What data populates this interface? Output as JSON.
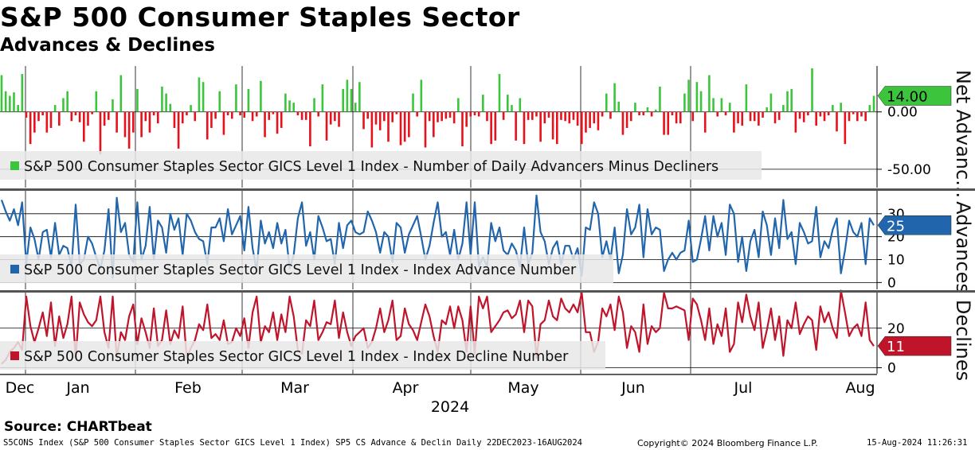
{
  "title": "S&P 500 Consumer Staples Sector",
  "subtitle": "Advances & Declines",
  "source": "Source: CHARTbeat",
  "footer": {
    "left": "S5CONS Index (S&P 500 Consumer Staples Sector GICS Level 1 Index) SP5 CS Advance & Declin  Daily 22DEC2023-16AUG2024",
    "copyright": "Copyright© 2024 Bloomberg Finance L.P.",
    "timestamp": "15-Aug-2024 11:26:31"
  },
  "colors": {
    "positive": "#3dc43d",
    "negative": "#e8101a",
    "advance": "#2166ac",
    "decline": "#c0142b",
    "grid": "#000000",
    "legend_bg": "#e8e8e8"
  },
  "chart_data": [
    {
      "panel": "top",
      "type": "bar",
      "side_label": "Net Advanc...",
      "legend": "S&P 500 Consumer Staples Sector GICS Level 1 Index - Number of Daily Advancers Minus Decliners",
      "last_value": 14,
      "last_value_label": "14.00",
      "tick_labels": [
        "0.00",
        "-50.00"
      ],
      "tick_values": [
        0,
        -50
      ],
      "ylim": [
        -66,
        40
      ],
      "values": [
        32,
        18,
        14,
        17,
        6,
        33,
        -5,
        -28,
        -18,
        -8,
        -3,
        -18,
        -14,
        6,
        -12,
        12,
        18,
        -8,
        -3,
        -9,
        -26,
        -12,
        -2,
        18,
        -37,
        -12,
        -7,
        11,
        -18,
        32,
        -22,
        -32,
        -18,
        20,
        -22,
        -8,
        -18,
        -3,
        -10,
        22,
        16,
        7,
        -14,
        -32,
        -10,
        -3,
        6,
        -8,
        30,
        26,
        -24,
        -14,
        -6,
        18,
        -20,
        -3,
        -6,
        24,
        -3,
        -5,
        20,
        -8,
        -4,
        27,
        -22,
        -7,
        -2,
        -19,
        -14,
        16,
        10,
        8,
        -3,
        -7,
        -7,
        -30,
        12,
        -4,
        24,
        -25,
        -11,
        -8,
        -13,
        20,
        28,
        20,
        8,
        26,
        -15,
        -6,
        -31,
        -11,
        -16,
        -8,
        -26,
        -9,
        -2,
        -29,
        -26,
        -22,
        16,
        -4,
        28,
        -31,
        -8,
        -22,
        -9,
        -8,
        -6,
        -5,
        -10,
        12,
        -30,
        -13,
        -4,
        -3,
        -4,
        15,
        -8,
        -28,
        -25,
        33,
        -7,
        15,
        6,
        -25,
        12,
        -28,
        -7,
        -7,
        -4,
        -26,
        -10,
        -5,
        -24,
        -28,
        -7,
        -8,
        -10,
        -7,
        -12,
        -28,
        -18,
        -14,
        -10,
        -16,
        -4,
        16,
        -6,
        25,
        9,
        -20,
        -14,
        -8,
        8,
        -3,
        -3,
        4,
        -4,
        2,
        22,
        -20,
        -20,
        -3,
        -10,
        -10,
        16,
        28,
        -8,
        26,
        18,
        -18,
        32,
        12,
        -4,
        12,
        -3,
        8,
        -18,
        -10,
        -12,
        24,
        -8,
        -8,
        -12,
        -5,
        4,
        16,
        -10,
        -7,
        6,
        18,
        20,
        -18,
        -6,
        -9,
        -3,
        38,
        -12,
        -4,
        -8,
        -3,
        6,
        -17,
        8,
        -28,
        -8,
        -2,
        -8,
        -4,
        -8,
        6,
        14
      ]
    },
    {
      "panel": "middle",
      "type": "line",
      "side_label": "Advances",
      "legend": "S&P 500 Consumer Staples Sector GICS Level 1 Index - Index Advance Number",
      "last_value": 25,
      "last_value_label": "25",
      "tick_labels": [
        "30",
        "20",
        "10",
        "0"
      ],
      "tick_values": [
        30,
        20,
        10,
        0
      ],
      "ylim": [
        -3,
        40
      ],
      "values": [
        36,
        31,
        27,
        32,
        25,
        35,
        8,
        24,
        19,
        10,
        22,
        23,
        11,
        26,
        12,
        16,
        15,
        7,
        34,
        8,
        10,
        20,
        17,
        11,
        6,
        14,
        32,
        2,
        37,
        22,
        26,
        12,
        9,
        35,
        10,
        16,
        33,
        10,
        27,
        24,
        13,
        30,
        23,
        28,
        12,
        30,
        27,
        22,
        19,
        18,
        8,
        24,
        24,
        28,
        18,
        32,
        21,
        25,
        29,
        14,
        33,
        15,
        5,
        27,
        17,
        22,
        15,
        26,
        17,
        23,
        6,
        12,
        28,
        35,
        16,
        22,
        10,
        29,
        24,
        18,
        19,
        8,
        26,
        15,
        25,
        27,
        22,
        21,
        22,
        31,
        27,
        22,
        13,
        22,
        20,
        9,
        26,
        24,
        13,
        21,
        25,
        29,
        20,
        10,
        16,
        26,
        35,
        20,
        22,
        12,
        23,
        10,
        17,
        35,
        12,
        35,
        7,
        11,
        7,
        26,
        18,
        24,
        14,
        12,
        17,
        14,
        7,
        24,
        8,
        13,
        38,
        22,
        18,
        8,
        15,
        18,
        8,
        16,
        16,
        10,
        15,
        3,
        24,
        23,
        35,
        30,
        11,
        18,
        10,
        24,
        4,
        12,
        32,
        21,
        24,
        34,
        11,
        32,
        21,
        24,
        23,
        5,
        10,
        13,
        10,
        13,
        14,
        27,
        9,
        10,
        19,
        29,
        14,
        29,
        20,
        26,
        12,
        34,
        30,
        9,
        20,
        5,
        18,
        23,
        11,
        31,
        25,
        12,
        28,
        15,
        36,
        19,
        22,
        8,
        26,
        22,
        17,
        18,
        33,
        11,
        18,
        15,
        23,
        28,
        4,
        14,
        27,
        22,
        20,
        26,
        8,
        28,
        25
      ]
    },
    {
      "panel": "bottom",
      "type": "line",
      "side_label": "Declines",
      "legend": "S&P 500 Consumer Staples Sector GICS Level 1 Index - Index Decline Number",
      "last_value": 11,
      "last_value_label": "11",
      "tick_labels": [
        "20",
        "0"
      ],
      "tick_values": [
        20,
        0
      ],
      "ylim": [
        -3,
        38
      ],
      "values": [
        2,
        4,
        8,
        10,
        13,
        9,
        36,
        21,
        13,
        20,
        28,
        16,
        33,
        11,
        26,
        15,
        22,
        36,
        5,
        33,
        27,
        23,
        21,
        24,
        36,
        18,
        10,
        36,
        5,
        18,
        14,
        26,
        32,
        12,
        25,
        18,
        10,
        30,
        11,
        14,
        29,
        12,
        19,
        15,
        31,
        5,
        10,
        14,
        22,
        19,
        32,
        15,
        17,
        14,
        24,
        12,
        13,
        20,
        16,
        25,
        10,
        28,
        36,
        13,
        21,
        18,
        28,
        14,
        27,
        18,
        36,
        26,
        9,
        7,
        24,
        21,
        34,
        14,
        18,
        23,
        22,
        34,
        15,
        28,
        18,
        11,
        16,
        18,
        20,
        10,
        13,
        20,
        30,
        18,
        24,
        34,
        14,
        16,
        30,
        22,
        19,
        14,
        23,
        32,
        26,
        16,
        8,
        24,
        22,
        31,
        20,
        31,
        24,
        8,
        31,
        7,
        36,
        30,
        36,
        18,
        21,
        24,
        28,
        29,
        25,
        27,
        34,
        18,
        34,
        31,
        5,
        22,
        24,
        34,
        26,
        24,
        35,
        30,
        28,
        32,
        28,
        38,
        18,
        18,
        8,
        13,
        30,
        26,
        32,
        19,
        36,
        28,
        10,
        21,
        18,
        8,
        32,
        12,
        21,
        18,
        20,
        38,
        30,
        30,
        31,
        30,
        29,
        14,
        35,
        32,
        24,
        14,
        30,
        12,
        22,
        16,
        30,
        8,
        12,
        33,
        23,
        37,
        26,
        19,
        33,
        10,
        19,
        30,
        14,
        26,
        6,
        24,
        20,
        33,
        17,
        22,
        26,
        24,
        9,
        31,
        23,
        28,
        20,
        15,
        39,
        28,
        16,
        20,
        22,
        16,
        33,
        14,
        11
      ]
    }
  ],
  "x_axis": {
    "months": [
      "Dec",
      "Jan",
      "Feb",
      "Mar",
      "Apr",
      "May",
      "Jun",
      "Jul",
      "Aug"
    ],
    "year_label": "2024"
  }
}
